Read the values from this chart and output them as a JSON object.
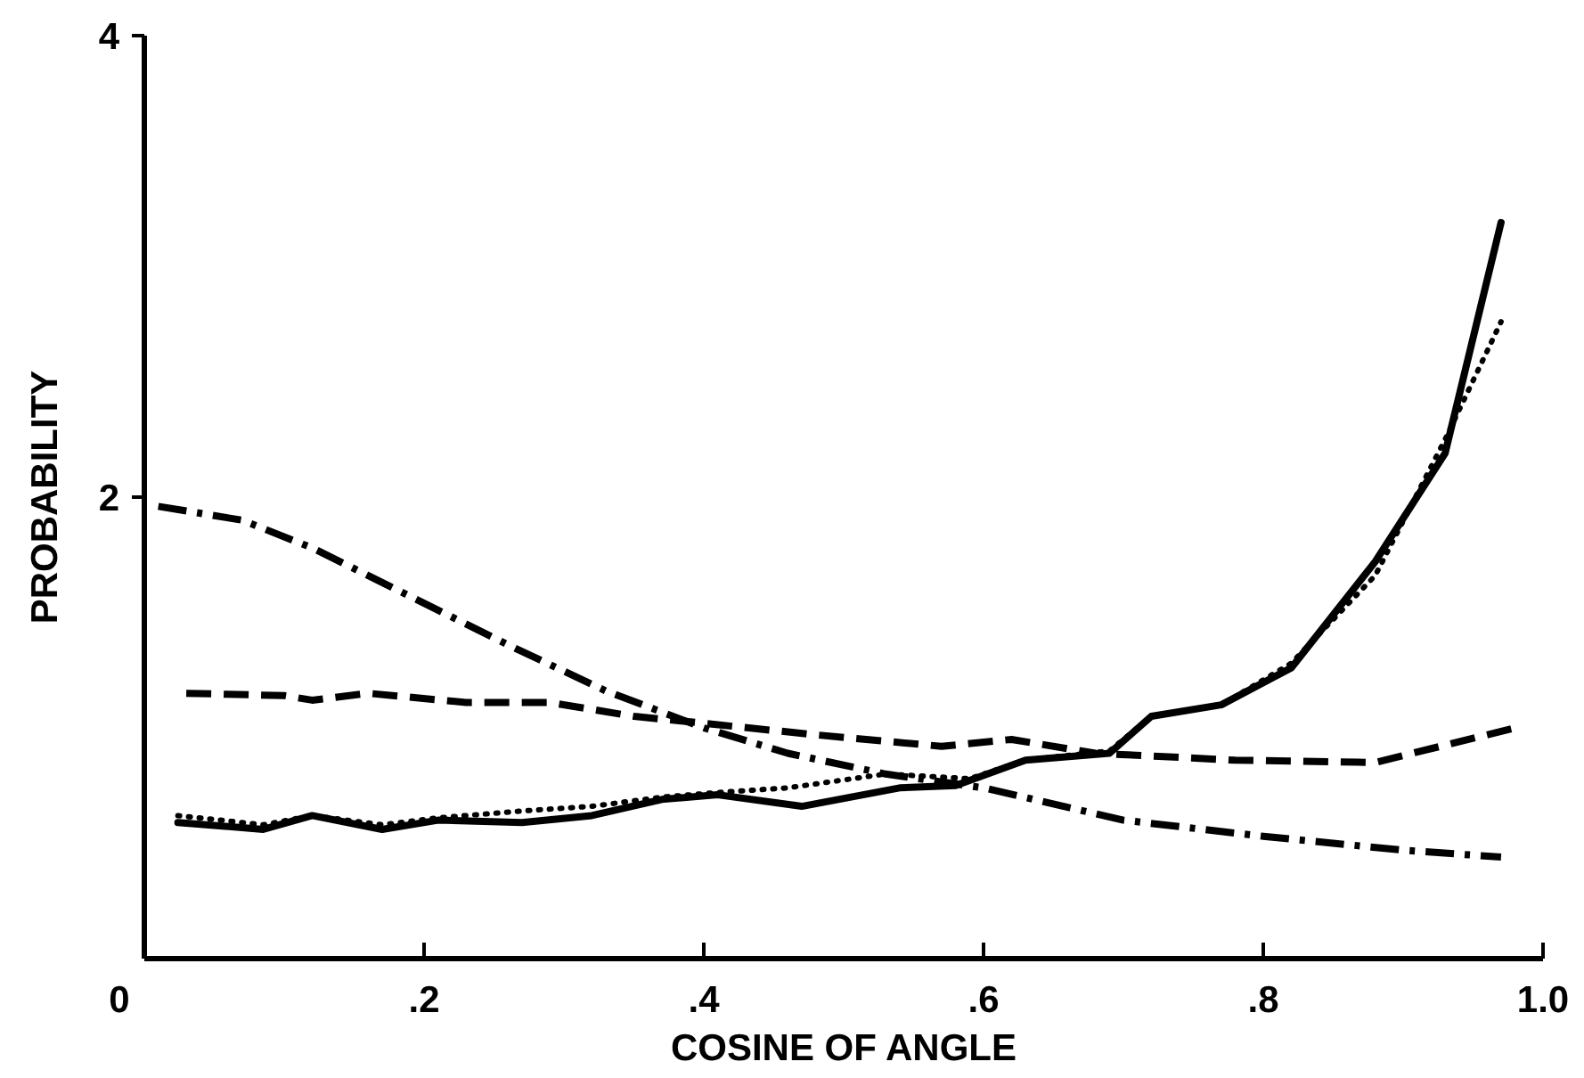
{
  "chart_data": {
    "type": "line",
    "xlabel": "COSINE OF ANGLE",
    "ylabel": "PROBABILITY",
    "xlim": [
      0,
      1
    ],
    "ylim": [
      0,
      4
    ],
    "xticks": [
      {
        "value": 0,
        "label": "0"
      },
      {
        "value": 0.2,
        "label": ".2"
      },
      {
        "value": 0.4,
        "label": ".4"
      },
      {
        "value": 0.6,
        "label": ".6"
      },
      {
        "value": 0.8,
        "label": ".8"
      },
      {
        "value": 1,
        "label": "1.0"
      }
    ],
    "yticks": [
      2,
      4
    ],
    "grid": false,
    "series": [
      {
        "color": "#000000",
        "line_style": "solid",
        "x": [
          0.024,
          0.085,
          0.12,
          0.17,
          0.21,
          0.27,
          0.32,
          0.37,
          0.41,
          0.47,
          0.54,
          0.58,
          0.63,
          0.69,
          0.72,
          0.77,
          0.82,
          0.88,
          0.93,
          0.97
        ],
        "values": [
          0.59,
          0.56,
          0.62,
          0.56,
          0.6,
          0.59,
          0.62,
          0.69,
          0.71,
          0.66,
          0.74,
          0.75,
          0.86,
          0.89,
          1.05,
          1.1,
          1.26,
          1.72,
          2.19,
          3.19
        ]
      },
      {
        "color": "#000000",
        "line_style": "dotted",
        "x": [
          0.024,
          0.085,
          0.12,
          0.17,
          0.21,
          0.27,
          0.32,
          0.37,
          0.41,
          0.46,
          0.53,
          0.59,
          0.63,
          0.69,
          0.72,
          0.77,
          0.82,
          0.88,
          0.93,
          0.97
        ],
        "values": [
          0.62,
          0.58,
          0.62,
          0.58,
          0.61,
          0.64,
          0.66,
          0.7,
          0.72,
          0.74,
          0.8,
          0.78,
          0.86,
          0.9,
          1.05,
          1.1,
          1.28,
          1.66,
          2.25,
          2.76
        ]
      },
      {
        "color": "#000000",
        "line_style": "dashed",
        "x": [
          0.03,
          0.1,
          0.12,
          0.16,
          0.23,
          0.29,
          0.35,
          0.4,
          0.48,
          0.57,
          0.62,
          0.68,
          0.78,
          0.88,
          0.98
        ],
        "values": [
          1.15,
          1.14,
          1.12,
          1.15,
          1.11,
          1.11,
          1.05,
          1.02,
          0.97,
          0.92,
          0.95,
          0.89,
          0.86,
          0.85,
          1.0
        ]
      },
      {
        "color": "#000000",
        "line_style": "dashdot",
        "x": [
          0.01,
          0.07,
          0.12,
          0.19,
          0.26,
          0.33,
          0.4,
          0.46,
          0.53,
          0.6,
          0.7,
          0.8,
          0.9,
          0.97
        ],
        "values": [
          1.96,
          1.9,
          1.78,
          1.57,
          1.36,
          1.16,
          1.0,
          0.89,
          0.8,
          0.74,
          0.6,
          0.53,
          0.47,
          0.44
        ]
      }
    ]
  }
}
